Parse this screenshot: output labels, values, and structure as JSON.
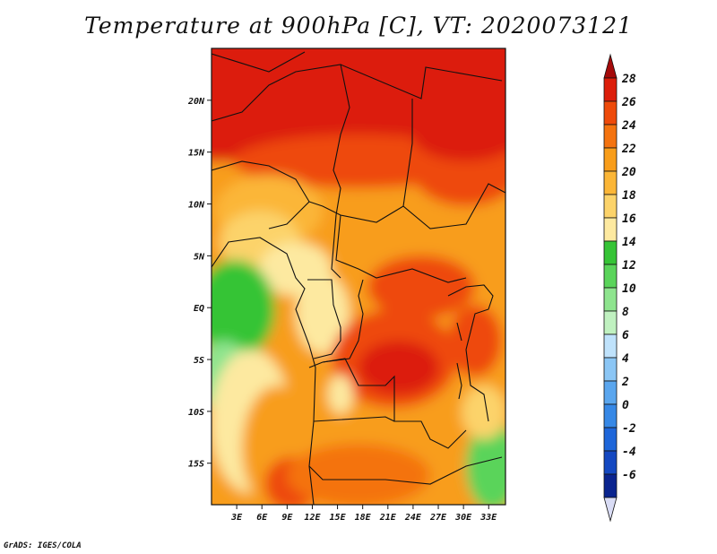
{
  "title": "Temperature at 900hPa [C], VT: 2020073121",
  "footer": "GrADS: IGES/COLA",
  "map": {
    "lon_range": [
      0,
      35
    ],
    "lat_range": [
      -19,
      25
    ],
    "lon_ticks": [
      {
        "value": 3,
        "label": "3E"
      },
      {
        "value": 6,
        "label": "6E"
      },
      {
        "value": 9,
        "label": "9E"
      },
      {
        "value": 12,
        "label": "12E"
      },
      {
        "value": 15,
        "label": "15E"
      },
      {
        "value": 18,
        "label": "18E"
      },
      {
        "value": 21,
        "label": "21E"
      },
      {
        "value": 24,
        "label": "24E"
      },
      {
        "value": 27,
        "label": "27E"
      },
      {
        "value": 30,
        "label": "30E"
      },
      {
        "value": 33,
        "label": "33E"
      }
    ],
    "lat_ticks": [
      {
        "value": 20,
        "label": "20N"
      },
      {
        "value": 15,
        "label": "15N"
      },
      {
        "value": 10,
        "label": "10N"
      },
      {
        "value": 5,
        "label": "5N"
      },
      {
        "value": 0,
        "label": "EQ"
      },
      {
        "value": -5,
        "label": "5S"
      },
      {
        "value": -10,
        "label": "10S"
      },
      {
        "value": -15,
        "label": "15S"
      }
    ]
  },
  "colorbar": {
    "levels": [
      "28",
      "26",
      "24",
      "22",
      "20",
      "18",
      "16",
      "14",
      "12",
      "10",
      "8",
      "6",
      "4",
      "2",
      "0",
      "-2",
      "-4",
      "-6"
    ],
    "colors": [
      "#a50a0a",
      "#dc1e0a",
      "#ee4a0a",
      "#f4730f",
      "#f89d1a",
      "#fbb637",
      "#fcd36a",
      "#fde9a0",
      "#36c436",
      "#5ad45a",
      "#8ee48e",
      "#c0f1c0",
      "#bfe2fb",
      "#8bc6f5",
      "#5aa6ee",
      "#3688e6",
      "#1e66d9",
      "#1448c1",
      "#0a248f",
      "#d9dcf5"
    ]
  }
}
